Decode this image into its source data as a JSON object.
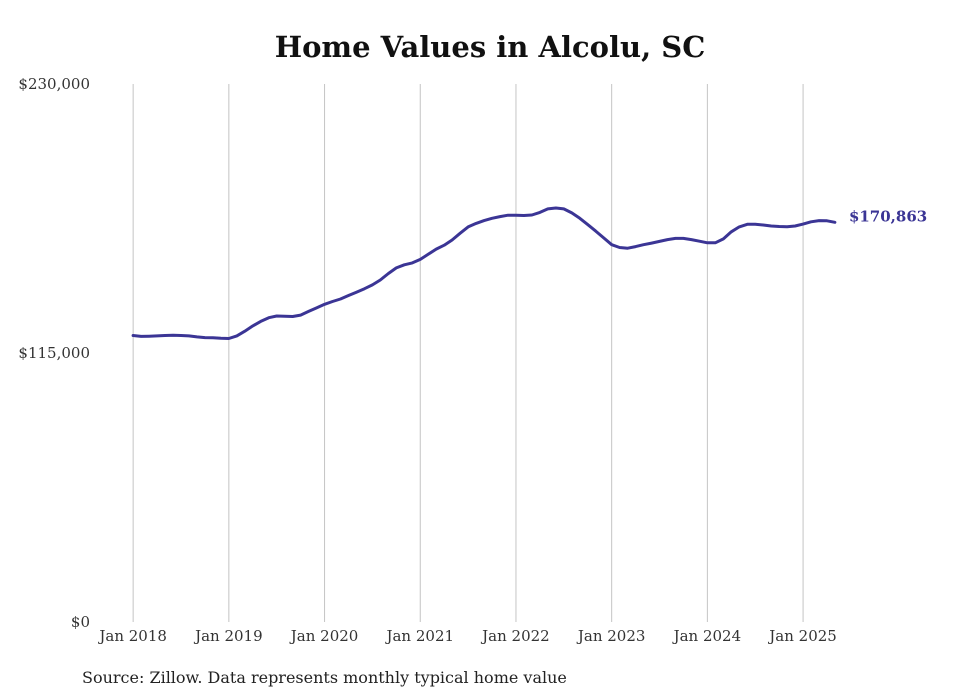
{
  "chart_data": {
    "type": "line",
    "title": "Home Values in Alcolu, SC",
    "source": "Source: Zillow. Data represents monthly typical home value",
    "ylim": [
      0,
      230000
    ],
    "y_ticks": [
      {
        "value": 0,
        "label": "$0"
      },
      {
        "value": 115000,
        "label": "$115,000"
      },
      {
        "value": 230000,
        "label": "$230,000"
      }
    ],
    "x_ticks": [
      {
        "value": 2018,
        "label": "Jan 2018"
      },
      {
        "value": 2019,
        "label": "Jan 2019"
      },
      {
        "value": 2020,
        "label": "Jan 2020"
      },
      {
        "value": 2021,
        "label": "Jan 2021"
      },
      {
        "value": 2022,
        "label": "Jan 2022"
      },
      {
        "value": 2023,
        "label": "Jan 2023"
      },
      {
        "value": 2024,
        "label": "Jan 2024"
      },
      {
        "value": 2025,
        "label": "Jan 2025"
      }
    ],
    "xlim": [
      2017.8,
      2025.95
    ],
    "grid": "vertical",
    "line_color": "#3b3595",
    "end_label": "$170,863",
    "series": [
      {
        "x": [
          2018.0,
          2018.083,
          2018.167,
          2018.25,
          2018.333,
          2018.417,
          2018.5,
          2018.583,
          2018.667,
          2018.75,
          2018.833,
          2018.917,
          2019.0,
          2019.083,
          2019.167,
          2019.25,
          2019.333,
          2019.417,
          2019.5,
          2019.583,
          2019.667,
          2019.75,
          2019.833,
          2019.917,
          2020.0,
          2020.083,
          2020.167,
          2020.25,
          2020.333,
          2020.417,
          2020.5,
          2020.583,
          2020.667,
          2020.75,
          2020.833,
          2020.917,
          2021.0,
          2021.083,
          2021.167,
          2021.25,
          2021.333,
          2021.417,
          2021.5,
          2021.583,
          2021.667,
          2021.75,
          2021.833,
          2021.917,
          2022.0,
          2022.083,
          2022.167,
          2022.25,
          2022.333,
          2022.417,
          2022.5,
          2022.583,
          2022.667,
          2022.75,
          2022.833,
          2022.917,
          2023.0,
          2023.083,
          2023.167,
          2023.25,
          2023.333,
          2023.417,
          2023.5,
          2023.583,
          2023.667,
          2023.75,
          2023.833,
          2023.917,
          2024.0,
          2024.083,
          2024.167,
          2024.25,
          2024.333,
          2024.417,
          2024.5,
          2024.583,
          2024.667,
          2024.75,
          2024.833,
          2024.917,
          2025.0,
          2025.083,
          2025.167,
          2025.25,
          2025.333
        ],
        "values": [
          122500,
          122100,
          122200,
          122300,
          122500,
          122600,
          122500,
          122300,
          121900,
          121600,
          121500,
          121300,
          121200,
          122300,
          124300,
          126600,
          128500,
          130100,
          130800,
          130700,
          130600,
          131200,
          132800,
          134300,
          135800,
          137000,
          138100,
          139600,
          141000,
          142500,
          144100,
          146200,
          149000,
          151400,
          152700,
          153500,
          155000,
          157200,
          159400,
          161100,
          163300,
          166200,
          168900,
          170400,
          171600,
          172600,
          173300,
          173900,
          173900,
          173800,
          174000,
          175100,
          176600,
          177000,
          176600,
          174900,
          172600,
          169900,
          167100,
          164200,
          161300,
          160100,
          159800,
          160500,
          161300,
          162000,
          162700,
          163500,
          164000,
          164000,
          163500,
          162800,
          162100,
          162100,
          163800,
          166800,
          168900,
          170000,
          170000,
          169700,
          169300,
          169100,
          169000,
          169300,
          170100,
          171100,
          171600,
          171500,
          170863
        ]
      }
    ]
  }
}
